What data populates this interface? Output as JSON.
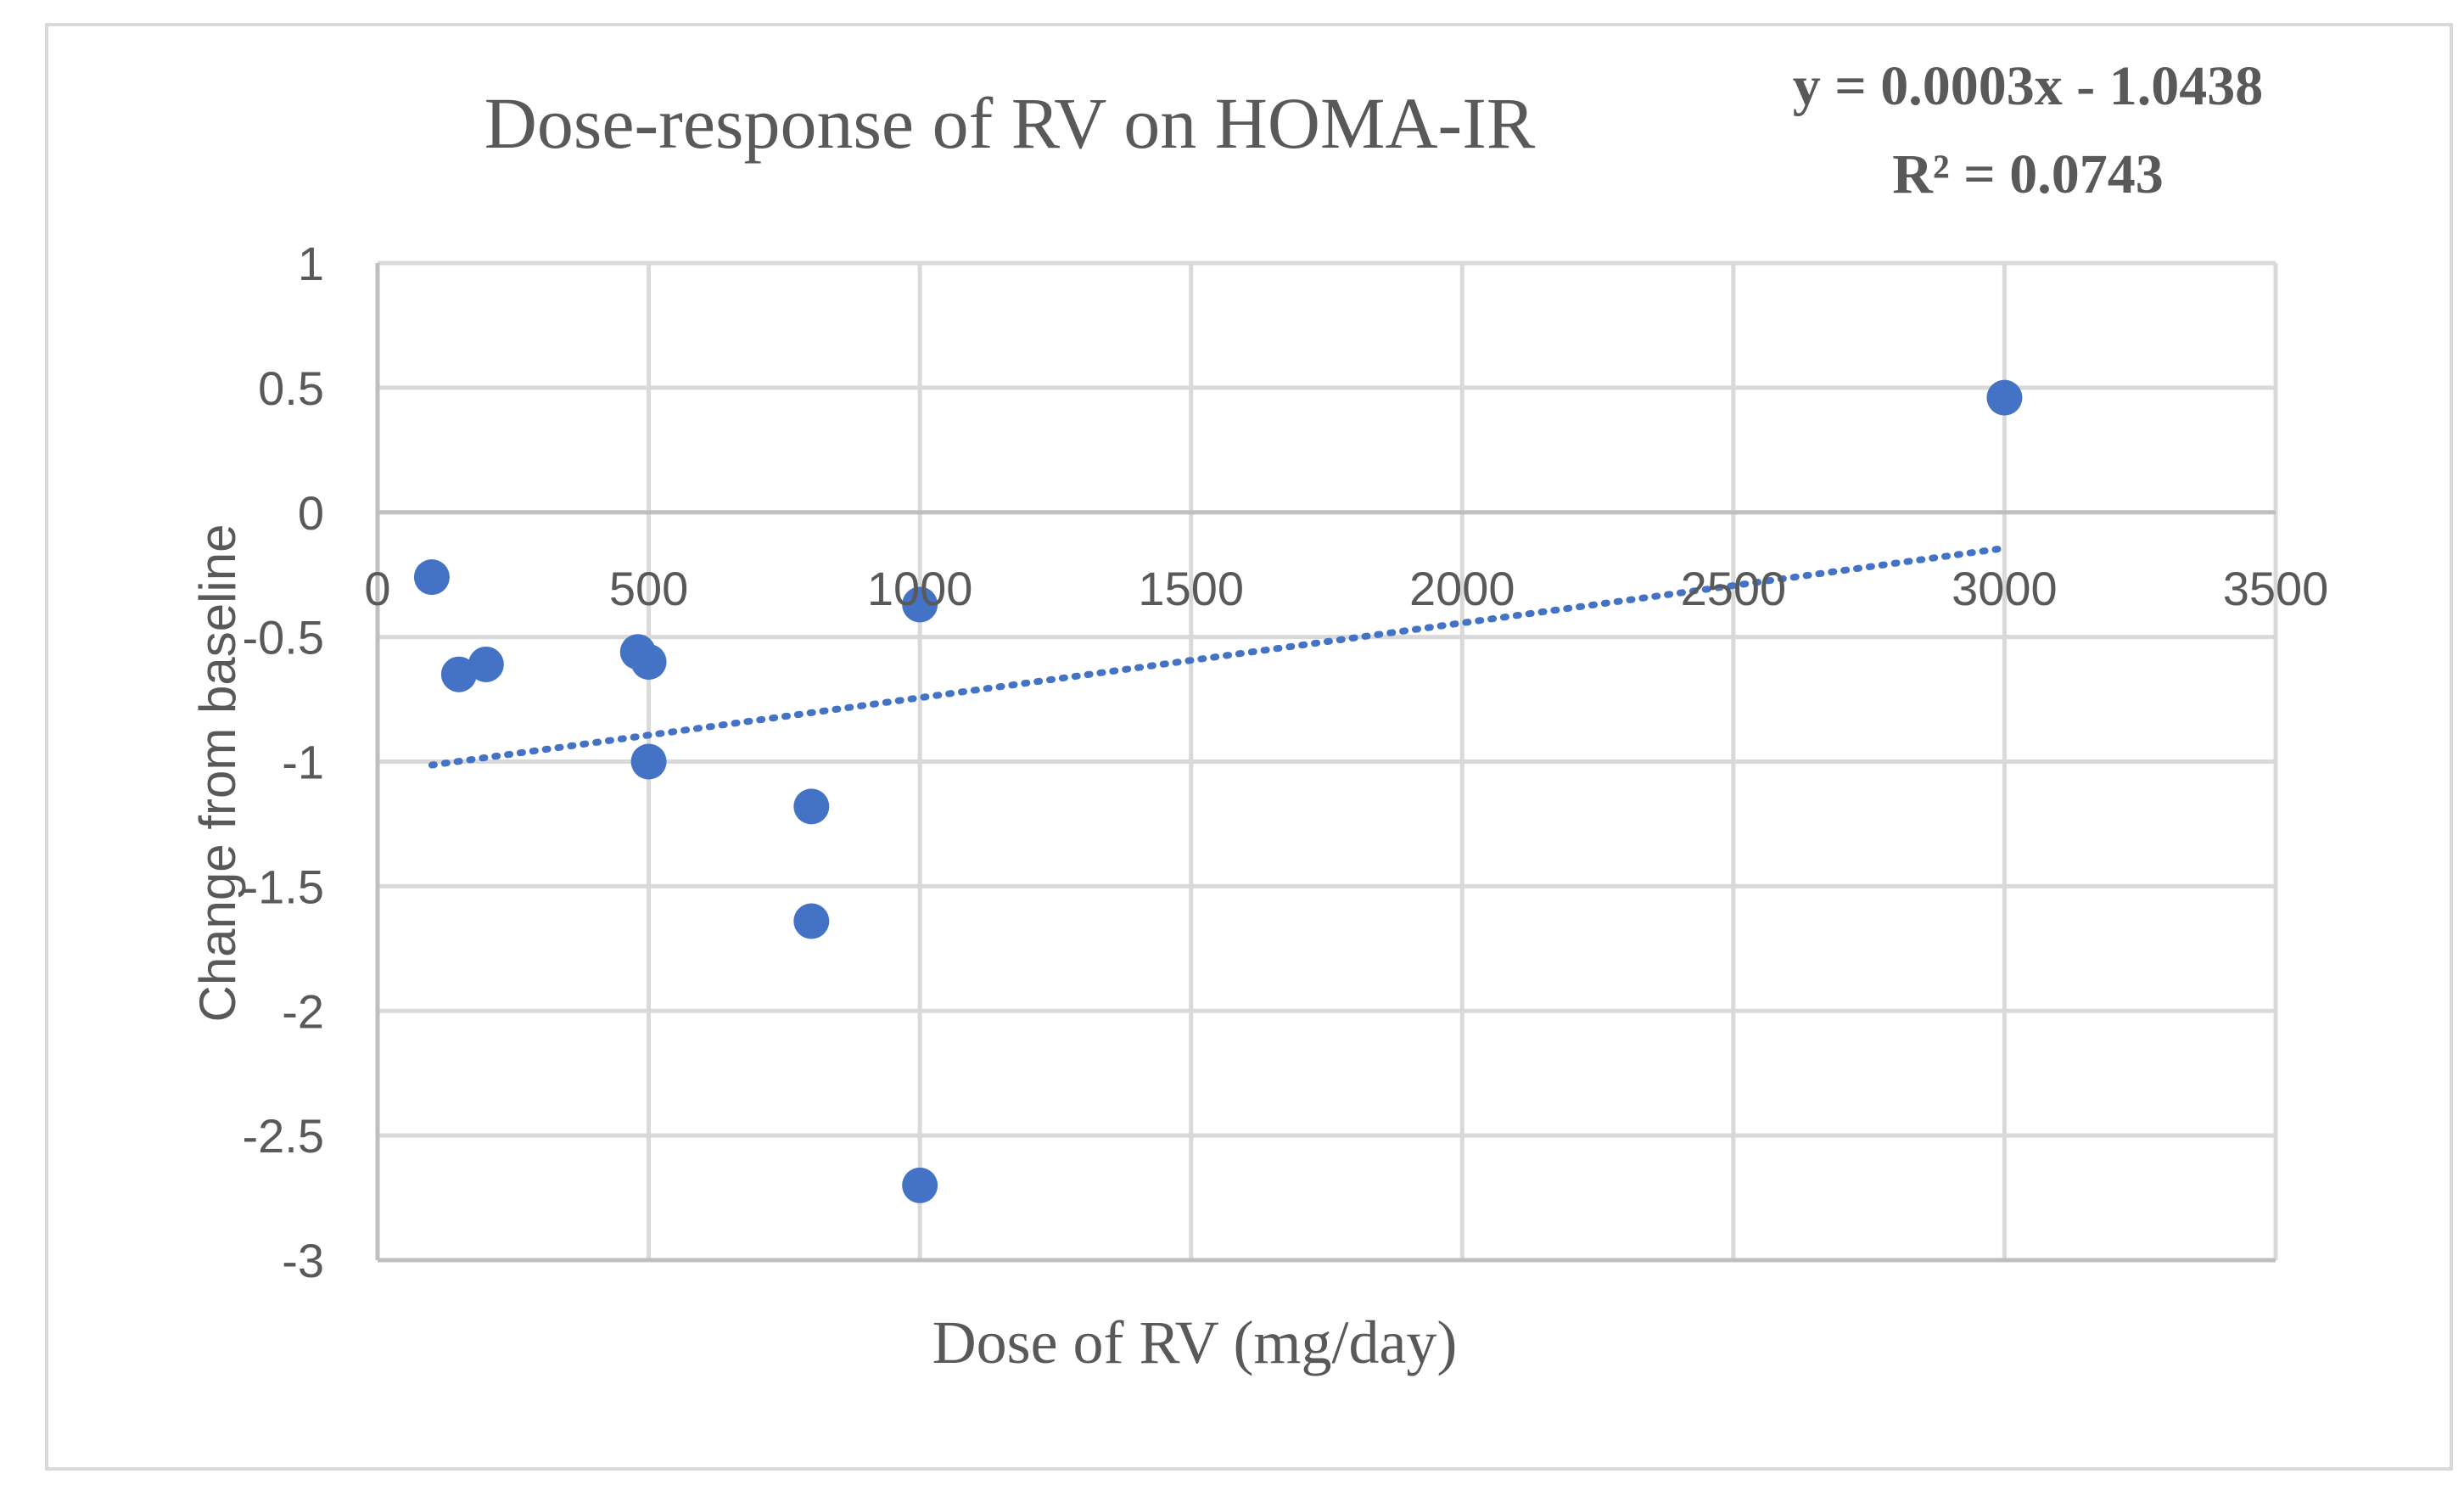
{
  "chart_data": {
    "type": "scatter",
    "title": "Dose-response of RV on HOMA-IR",
    "xlabel": "Dose of RV (mg/day)",
    "ylabel": "Change from baseline",
    "xlim": [
      0,
      3500
    ],
    "ylim": [
      -3,
      1
    ],
    "x_ticks": [
      0,
      500,
      1000,
      1500,
      2000,
      2500,
      3000,
      3500
    ],
    "x_tick_labels": [
      "0",
      "500",
      "1000",
      "1500",
      "2000",
      "2500",
      "3000",
      "3500"
    ],
    "y_ticks": [
      1,
      0.5,
      0,
      -0.5,
      -1,
      -1.5,
      -2,
      -2.5,
      -3
    ],
    "y_tick_labels": [
      "1",
      "0.5",
      "0",
      "-0.5",
      "-1",
      "-1.5",
      "-2",
      "-2.5",
      "-3"
    ],
    "grid": true,
    "series": [
      {
        "name": "Change from baseline",
        "color": "#4472c4",
        "x": [
          100,
          150,
          200,
          480,
          500,
          500,
          800,
          800,
          1000,
          1000,
          3000
        ],
        "y": [
          -0.26,
          -0.65,
          -0.61,
          -0.56,
          -0.6,
          -1.0,
          -1.18,
          -1.64,
          -0.37,
          -2.7,
          0.46
        ]
      }
    ],
    "trendline": {
      "type": "linear",
      "slope": 0.0003,
      "intercept": -1.0438,
      "x_range": [
        100,
        3000
      ],
      "equation": "y = 0.0003x - 1.0438",
      "r_squared": "R² = 0.0743",
      "color": "#4472c4"
    }
  }
}
